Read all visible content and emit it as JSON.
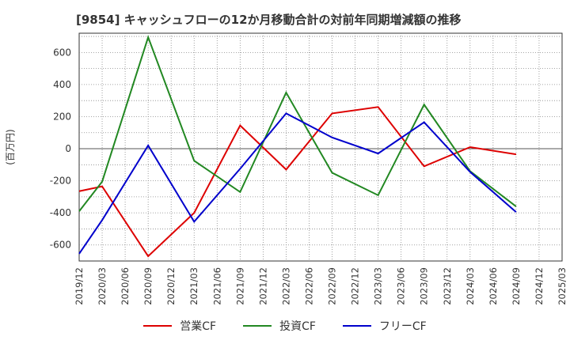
{
  "chart_data": {
    "type": "line",
    "title": "[9854]  キャッシュフローの12か月移動合計の対前年同期増減額の推移",
    "ylabel": "(百万円)",
    "xlabel": "",
    "ylim": [
      -700,
      720
    ],
    "yticks": [
      600,
      400,
      200,
      0,
      -200,
      -400,
      -600
    ],
    "x": [
      "2019/12",
      "2020/03",
      "2020/06",
      "2020/09",
      "2020/12",
      "2021/03",
      "2021/06",
      "2021/09",
      "2021/12",
      "2022/03",
      "2022/06",
      "2022/09",
      "2022/12",
      "2023/03",
      "2023/06",
      "2023/09",
      "2023/12",
      "2024/03",
      "2024/06",
      "2024/09",
      "2024/12",
      "2025/03"
    ],
    "grid": true,
    "legend_position": "bottom",
    "series": [
      {
        "name": "営業CF",
        "color": "#dd0000",
        "values": [
          -265,
          -235,
          null,
          -670,
          null,
          -400,
          null,
          145,
          null,
          -130,
          null,
          220,
          null,
          260,
          null,
          -110,
          null,
          10,
          null,
          -35,
          null,
          null
        ]
      },
      {
        "name": "投資CF",
        "color": "#228822",
        "values": [
          -390,
          -205,
          null,
          695,
          null,
          -75,
          null,
          -270,
          null,
          350,
          null,
          -150,
          null,
          -290,
          null,
          275,
          null,
          -140,
          null,
          -360,
          null,
          null
        ]
      },
      {
        "name": "フリーCF",
        "color": "#0000cc",
        "values": [
          -655,
          -445,
          null,
          20,
          null,
          -455,
          null,
          -125,
          null,
          220,
          null,
          70,
          null,
          -30,
          null,
          165,
          null,
          -145,
          null,
          -395,
          null,
          null
        ]
      }
    ]
  }
}
